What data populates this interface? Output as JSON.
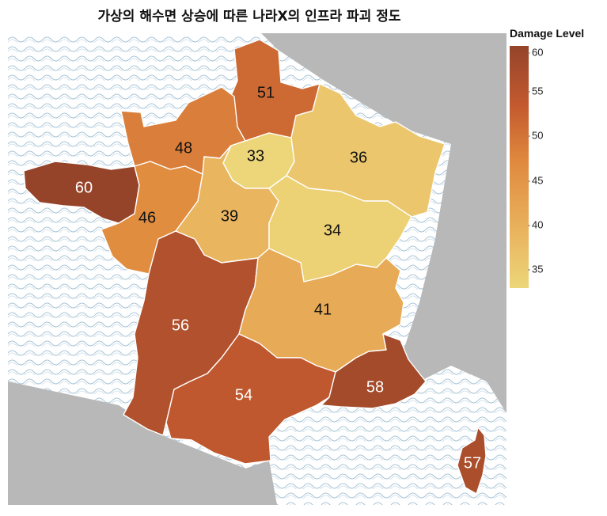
{
  "title": "가상의 해수면 상승에 따른 나라X의 인프라 파괴 정도",
  "legend": {
    "title": "Damage Level",
    "ticks": [
      "60",
      "55",
      "50",
      "45",
      "40",
      "35"
    ],
    "range": [
      33,
      60
    ],
    "colors": [
      "#ecd679",
      "#e9b15c",
      "#e08a3e",
      "#c45a2f",
      "#95442a"
    ]
  },
  "map": {
    "sea_color": "#ffffff",
    "wave_color": "#a9c4d6",
    "land_color": "#b8b8b8"
  },
  "regions": [
    {
      "id": "north",
      "label": "51",
      "value": 51
    },
    {
      "id": "normandy",
      "label": "48",
      "value": 48
    },
    {
      "id": "ile-de-france",
      "label": "33",
      "value": 33
    },
    {
      "id": "grand-est",
      "label": "36",
      "value": 36
    },
    {
      "id": "brittany",
      "label": "60",
      "value": 60
    },
    {
      "id": "pays-de-la-loire",
      "label": "46",
      "value": 46
    },
    {
      "id": "centre",
      "label": "39",
      "value": 39
    },
    {
      "id": "burgundy",
      "label": "34",
      "value": 34
    },
    {
      "id": "nouvelle-aquitaine",
      "label": "56",
      "value": 56
    },
    {
      "id": "auvergne-rhone-alpes",
      "label": "41",
      "value": 41
    },
    {
      "id": "occitanie",
      "label": "54",
      "value": 54
    },
    {
      "id": "provence",
      "label": "58",
      "value": 58
    },
    {
      "id": "corsica",
      "label": "57",
      "value": 57
    }
  ]
}
